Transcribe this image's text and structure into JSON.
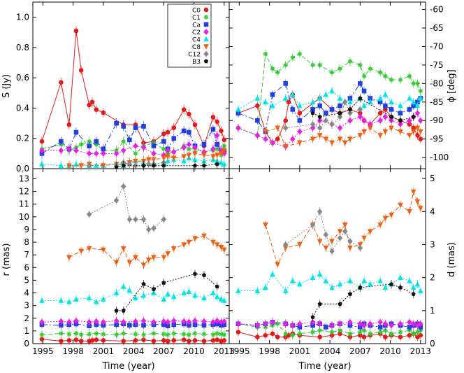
{
  "chart_data": {
    "type": "scatter",
    "layout": "2x2 panels sharing time axis",
    "xlabel": "Time (year)",
    "xticks": [
      1995,
      1998,
      2001,
      2004,
      2007,
      2010,
      2013
    ],
    "xlim": [
      1994,
      2013.5
    ],
    "panels": {
      "S": {
        "ylabel": "S (Jy)",
        "ylim": [
          0,
          1.1
        ],
        "yticks": [
          "0.0",
          "0.2",
          "0.4",
          "0.6",
          "0.8",
          "1.0"
        ],
        "yvals": [
          0,
          0.2,
          0.4,
          0.6,
          0.8,
          1.0
        ]
      },
      "phi": {
        "ylabel": "ϕ [deg]",
        "ylim": [
          -103,
          -58
        ],
        "yticks": [
          "-60",
          "-65",
          "-70",
          "-75",
          "-80",
          "-85",
          "-90",
          "-95",
          "-100"
        ],
        "yvals": [
          -60,
          -65,
          -70,
          -75,
          -80,
          -85,
          -90,
          -95,
          -100
        ]
      },
      "r": {
        "ylabel": "r (mas)",
        "ylim": [
          0,
          13.8
        ],
        "yticks": [
          "0",
          "1",
          "2",
          "3",
          "4",
          "5",
          "6",
          "7",
          "8",
          "9",
          "10",
          "11",
          "12",
          "13"
        ],
        "yvals": [
          0,
          1,
          2,
          3,
          4,
          5,
          6,
          7,
          8,
          9,
          10,
          11,
          12,
          13
        ]
      },
      "d": {
        "ylabel": "d (mas)",
        "ylim": [
          0,
          5.3
        ],
        "yticks": [
          "0",
          "1",
          "2",
          "3",
          "4",
          "5"
        ],
        "yvals": [
          0,
          1,
          2,
          3,
          4,
          5
        ]
      }
    },
    "legend": {
      "placement": "top-right of S panel",
      "entries": [
        "C0",
        "C1",
        "Ca",
        "C2",
        "C4",
        "C8",
        "C12",
        "B3"
      ]
    },
    "series": [
      {
        "name": "C0",
        "color": "#e31a1c",
        "marker": "circle",
        "dash": "",
        "t": [
          1994.9,
          1996.8,
          1997.6,
          1998.3,
          1998.8,
          1999.6,
          1999.9,
          2000.3,
          2001.0,
          2003.0,
          2004.2,
          2005.0,
          2006.0,
          2007.0,
          2007.4,
          2008.0,
          2009.0,
          2009.5,
          2010.1,
          2011.0,
          2011.9,
          2012.3,
          2012.7,
          2013.0
        ],
        "S": [
          0.18,
          0.57,
          0.29,
          0.91,
          0.65,
          0.42,
          0.44,
          0.39,
          0.37,
          0.29,
          0.29,
          0.17,
          0.18,
          0.23,
          0.24,
          0.27,
          0.39,
          0.36,
          0.29,
          0.15,
          0.34,
          0.31,
          0.25,
          0.19
        ],
        "phi": [
          -88,
          -86,
          -93,
          -96,
          -95,
          -90,
          -85,
          -83,
          -88,
          -84,
          -87,
          -88,
          -87,
          -88,
          -90,
          -91,
          -88,
          -87,
          -89,
          -90,
          -91,
          -92,
          -94,
          -95
        ],
        "r": [
          0.35,
          0.2,
          0.25,
          0.3,
          0.2,
          0.2,
          0.25,
          0.3,
          0.25,
          0.2,
          0.25,
          0.3,
          0.2,
          0.25,
          0.2,
          0.25,
          0.3,
          0.2,
          0.25,
          0.2,
          0.25,
          0.3,
          0.2,
          0.25
        ],
        "d": [
          0.35,
          0.2,
          0.25,
          0.3,
          0.2,
          0.2,
          0.25,
          0.3,
          0.25,
          0.2,
          0.25,
          0.3,
          0.2,
          0.25,
          0.2,
          0.25,
          0.3,
          0.2,
          0.25,
          0.2,
          0.25,
          0.3,
          0.2,
          0.25
        ]
      },
      {
        "name": "C1",
        "color": "#33cc33",
        "marker": "star",
        "dash": "6,3",
        "t": [
          1994.9,
          1996.8,
          1997.6,
          1998.3,
          1998.8,
          1999.6,
          2000.3,
          2001.0,
          2002.3,
          2003.0,
          2004.2,
          2005.0,
          2006.0,
          2007.0,
          2007.4,
          2008.0,
          2009.0,
          2009.5,
          2010.1,
          2011.0,
          2011.9,
          2012.3,
          2012.7,
          2013.0
        ],
        "S": [
          0.13,
          0.16,
          0.12,
          0.14,
          0.16,
          0.18,
          0.16,
          0.12,
          0.12,
          0.18,
          0.1,
          0.15,
          0.17,
          0.13,
          0.1,
          0.11,
          0.15,
          0.13,
          0.13,
          0.11,
          0.12,
          0.13,
          0.09,
          0.15
        ],
        "phi": [
          -92,
          -94,
          -72,
          -76,
          -77,
          -75,
          -73,
          -72,
          -75,
          -75,
          -77,
          -76,
          -74,
          -75,
          -78,
          -76,
          -77,
          -78,
          -79,
          -79,
          -78,
          -80,
          -80,
          -82
        ],
        "r": [
          0.7,
          0.8,
          0.75,
          0.8,
          0.7,
          0.75,
          0.8,
          0.75,
          0.7,
          0.8,
          0.75,
          0.7,
          0.8,
          0.75,
          0.7,
          0.8,
          0.75,
          0.7,
          0.8,
          0.75,
          0.7,
          0.8,
          0.75,
          0.7
        ],
        "d": [
          0.6,
          0.5,
          0.5,
          0.55,
          0.6,
          0.3,
          0.25,
          0.3,
          0.35,
          0.4,
          0.35,
          0.4,
          0.3,
          0.35,
          0.4,
          0.3,
          0.35,
          0.4,
          0.3,
          0.35,
          0.4,
          0.3,
          0.35,
          0.4
        ]
      },
      {
        "name": "Ca",
        "color": "#1f3fe0",
        "marker": "square",
        "dash": "8,3,2,3",
        "t": [
          1994.9,
          1996.8,
          1997.6,
          1998.3,
          1999.6,
          2000.3,
          2001.0,
          2002.3,
          2003.0,
          2003.6,
          2004.2,
          2005.0,
          2006.0,
          2007.0,
          2007.4,
          2008.0,
          2009.0,
          2009.5,
          2010.1,
          2011.0,
          2011.9,
          2012.3,
          2012.7,
          2013.0
        ],
        "S": [
          0.1,
          0.18,
          0.13,
          0.24,
          0.15,
          0.18,
          0.13,
          0.3,
          0.28,
          0.19,
          0.27,
          0.28,
          0.15,
          0.18,
          0.13,
          0.2,
          0.25,
          0.24,
          0.15,
          0.16,
          0.26,
          0.16,
          0.12,
          0.12
        ],
        "phi": [
          -88,
          -90,
          -93,
          -83,
          -80,
          -87,
          -90,
          -87,
          -86,
          -88,
          -87,
          -86,
          -84,
          -80,
          -82,
          -84,
          -85,
          -86,
          -87,
          -88,
          -87,
          -86,
          -85,
          -84
        ],
        "r": [
          1.5,
          1.45,
          1.5,
          1.55,
          1.4,
          1.5,
          1.45,
          1.5,
          1.55,
          1.45,
          1.5,
          1.45,
          1.5,
          1.5,
          1.4,
          1.5,
          1.55,
          1.45,
          1.5,
          1.45,
          1.5,
          1.55,
          1.45,
          1.5
        ],
        "d": [
          0.6,
          0.55,
          0.6,
          0.65,
          0.6,
          0.55,
          0.5,
          0.55,
          0.6,
          0.5,
          0.55,
          0.6,
          0.55,
          0.5,
          0.6,
          0.55,
          0.5,
          0.55,
          0.6,
          0.55,
          0.5,
          0.55,
          0.6,
          0.5
        ]
      },
      {
        "name": "C2",
        "color": "#e61ee6",
        "marker": "diamond",
        "dash": "2,2",
        "t": [
          1994.9,
          1996.8,
          1997.6,
          1998.3,
          1999.6,
          2000.3,
          2001.0,
          2002.3,
          2003.0,
          2004.2,
          2005.0,
          2006.0,
          2007.0,
          2007.4,
          2008.0,
          2009.0,
          2009.5,
          2010.1,
          2011.0,
          2011.9,
          2012.3,
          2012.7,
          2013.0
        ],
        "S": [
          0.12,
          0.12,
          0.13,
          0.12,
          0.1,
          0.1,
          0.1,
          0.1,
          0.12,
          0.15,
          0.14,
          0.1,
          0.09,
          0.12,
          0.11,
          0.14,
          0.16,
          0.14,
          0.11,
          0.13,
          0.22,
          0.12,
          0.1
        ],
        "phi": [
          -92,
          -94,
          -95,
          -96,
          -97,
          -95,
          -93,
          -92,
          -90,
          -91,
          -92,
          -90,
          -89,
          -90,
          -91,
          -90,
          -89,
          -90,
          -91,
          -90,
          -89,
          -88,
          -90
        ],
        "r": [
          1.7,
          1.75,
          1.7,
          1.8,
          1.7,
          1.75,
          1.7,
          1.8,
          1.7,
          1.75,
          1.8,
          1.7,
          1.75,
          1.7,
          1.8,
          1.75,
          1.7,
          1.8,
          1.75,
          1.7,
          1.8,
          1.7,
          1.75
        ],
        "d": [
          0.6,
          0.55,
          0.6,
          0.65,
          0.6,
          0.55,
          0.6,
          0.65,
          0.6,
          0.55,
          0.6,
          0.65,
          0.6,
          0.55,
          0.6,
          0.65,
          0.6,
          0.55,
          0.6,
          0.65,
          0.6,
          0.55,
          0.6
        ]
      },
      {
        "name": "C4",
        "color": "#00e5e5",
        "marker": "triangle-up",
        "dash": "2,2",
        "t": [
          1994.9,
          1996.8,
          1997.6,
          1998.3,
          1999.6,
          2000.3,
          2001.0,
          2002.3,
          2003.0,
          2003.6,
          2004.2,
          2005.0,
          2006.0,
          2007.0,
          2007.4,
          2008.0,
          2009.0,
          2009.5,
          2010.1,
          2011.0,
          2011.9,
          2012.3,
          2012.7,
          2013.0
        ],
        "S": [
          0.03,
          0.02,
          0.02,
          0.03,
          0.02,
          0.02,
          0.02,
          0.03,
          0.02,
          0.04,
          0.05,
          0.04,
          0.03,
          0.04,
          0.05,
          0.06,
          0.05,
          0.07,
          0.06,
          0.05,
          0.06,
          0.05,
          0.04,
          0.03
        ],
        "phi": [
          -87,
          -84,
          -85,
          -86,
          -84,
          -83,
          -86,
          -85,
          -84,
          -83,
          -82,
          -84,
          -85,
          -84,
          -86,
          -85,
          -84,
          -83,
          -85,
          -86,
          -84,
          -85,
          -86,
          -84
        ],
        "r": [
          3.4,
          3.4,
          3.3,
          3.5,
          3.6,
          3.3,
          3.5,
          4.0,
          4.5,
          4.2,
          3.6,
          3.8,
          4.0,
          3.5,
          3.9,
          3.7,
          4.0,
          4.1,
          3.8,
          3.6,
          4.0,
          3.7,
          3.5,
          3.4
        ],
        "d": [
          1.6,
          1.6,
          1.7,
          2.1,
          1.6,
          1.9,
          1.8,
          2.0,
          2.1,
          1.9,
          1.7,
          1.8,
          1.9,
          1.7,
          1.9,
          1.8,
          1.9,
          1.7,
          1.8,
          2.0,
          1.9,
          1.7,
          1.8,
          1.6
        ]
      },
      {
        "name": "C8",
        "color": "#ee6010",
        "marker": "triangle-down",
        "dash": "6,3",
        "t": [
          1997.6,
          1998.8,
          1999.6,
          2001.0,
          2002.3,
          2003.0,
          2003.6,
          2004.2,
          2005.0,
          2005.5,
          2006.0,
          2007.0,
          2007.4,
          2008.0,
          2009.0,
          2009.5,
          2010.1,
          2011.0,
          2011.9,
          2012.3,
          2012.7,
          2013.0
        ],
        "S": [
          0.02,
          0.02,
          0.03,
          0.02,
          0.03,
          0.03,
          0.04,
          0.05,
          0.05,
          0.06,
          0.06,
          0.07,
          0.08,
          0.07,
          0.08,
          0.09,
          0.1,
          0.09,
          0.08,
          0.09,
          0.1,
          0.12
        ],
        "phi": [
          -93,
          -92,
          -97,
          -96,
          -95,
          -94,
          -95,
          -96,
          -95,
          -96,
          -95,
          -94,
          -93,
          -92,
          -94,
          -93,
          -92,
          -93,
          -94,
          -93,
          -92,
          -93
        ],
        "r": [
          6.8,
          7.3,
          7.5,
          7.4,
          6.4,
          7.5,
          6.4,
          6.8,
          6.2,
          6.6,
          6.8,
          6.8,
          7.1,
          7.5,
          7.8,
          8.0,
          8.3,
          8.5,
          8.0,
          7.8,
          7.6,
          7.4
        ],
        "d": [
          3.6,
          2.4,
          2.9,
          3.0,
          3.6,
          3.1,
          2.9,
          3.1,
          3.4,
          3.6,
          2.9,
          3.0,
          3.2,
          3.4,
          3.6,
          3.8,
          3.9,
          4.2,
          4.0,
          4.6,
          4.3,
          4.1
        ]
      },
      {
        "name": "C12",
        "color": "#888888",
        "marker": "diamond",
        "dash": "2,2",
        "t": [
          1999.6,
          2002.3,
          2003.0,
          2003.6,
          2004.2,
          2005.0,
          2005.5,
          2006.0,
          2007.0
        ],
        "S": [
          0.02,
          0.03,
          0.04,
          0.03,
          0.02,
          0.02,
          0.03,
          0.03,
          0.04
        ],
        "phi": [
          -92,
          -91,
          -92,
          -90,
          -91,
          -89,
          -85,
          -88,
          -87
        ],
        "r": [
          10.2,
          11.3,
          12.4,
          9.8,
          9.8,
          9.8,
          9.0,
          9.1,
          9.8
        ],
        "d": [
          3.0,
          3.6,
          4.0,
          3.3,
          2.8,
          3.2,
          3.4,
          3.1,
          2.9
        ]
      },
      {
        "name": "B3",
        "color": "#111111",
        "marker": "pentagon",
        "dash": "2,2",
        "t": [
          2002.3,
          2003.0,
          2005.0,
          2006.0,
          2007.0,
          2010.1,
          2011.0,
          2012.3
        ],
        "S": [
          0.01,
          0.02,
          0.02,
          0.02,
          0.02,
          0.02,
          0.02,
          0.03
        ],
        "phi": [
          -88,
          -89,
          -88,
          -87,
          -84,
          -89,
          -90,
          -89
        ],
        "r": [
          2.6,
          2.6,
          4.7,
          4.3,
          4.8,
          5.5,
          5.4,
          4.5
        ],
        "d": [
          0.8,
          1.2,
          1.2,
          1.5,
          1.7,
          1.8,
          1.7,
          1.5
        ]
      }
    ]
  }
}
